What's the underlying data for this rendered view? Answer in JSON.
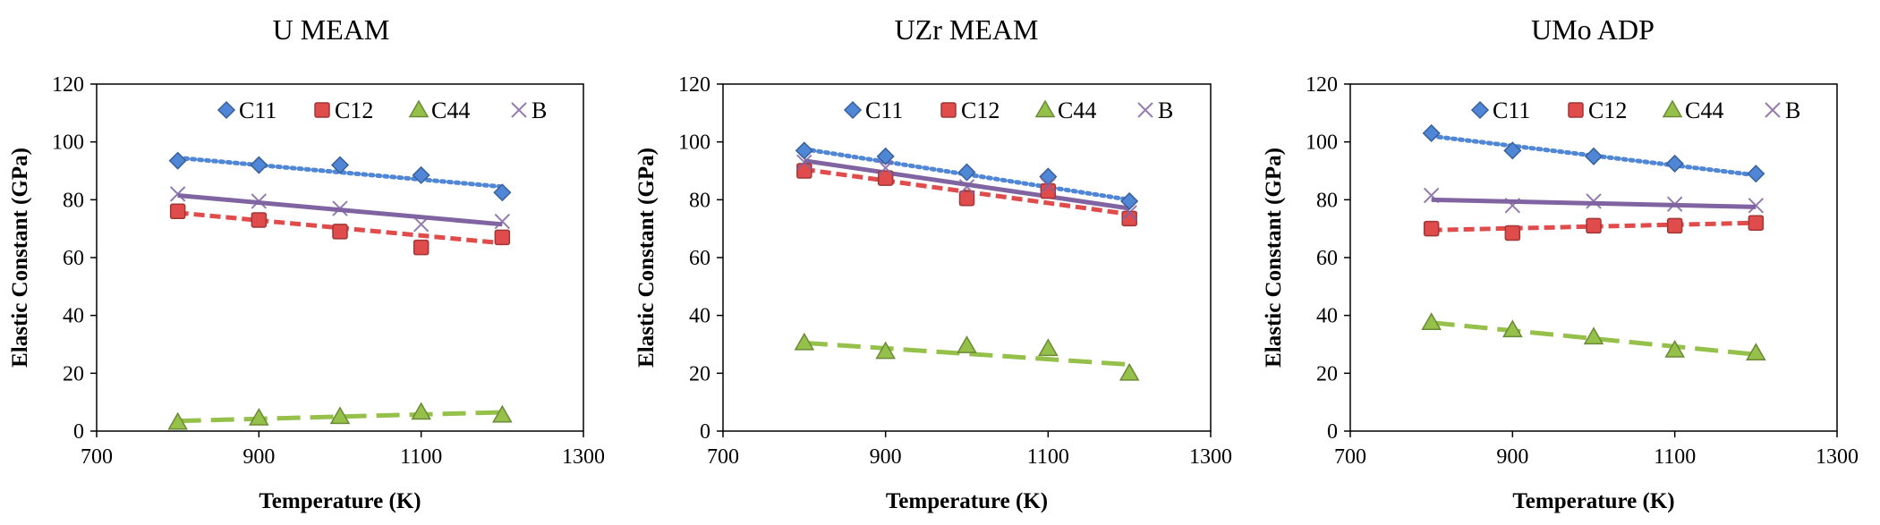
{
  "colors": {
    "C11": "#4f86d6",
    "C12": "#e04b4b",
    "C44": "#95c04a",
    "B": "#8064a2",
    "frame": "#000000"
  },
  "chart_data": [
    {
      "type": "scatter",
      "title": "U MEAM",
      "xlabel": "Temperature (K)",
      "ylabel": "Elastic Constant (GPa)",
      "xlim": [
        700,
        1300
      ],
      "ylim": [
        0,
        120
      ],
      "xticks": [
        700,
        900,
        1100,
        1300
      ],
      "yticks": [
        0,
        20,
        40,
        60,
        80,
        100,
        120
      ],
      "grid": false,
      "legend": "top",
      "x": [
        800,
        900,
        1000,
        1100,
        1200
      ],
      "series": [
        {
          "name": "C11",
          "marker": "diamond",
          "values": [
            93.5,
            92,
            92,
            88.5,
            82.5
          ],
          "trend": "dotted",
          "trendline": [
            94.5,
            84.5
          ]
        },
        {
          "name": "C12",
          "marker": "square",
          "values": [
            76,
            73,
            69,
            63.5,
            67
          ],
          "trend": "short-dash",
          "trendline": [
            75.5,
            65
          ]
        },
        {
          "name": "C44",
          "marker": "triangle",
          "values": [
            3,
            4.5,
            5,
            6.5,
            5.5
          ],
          "trend": "long-dash",
          "trendline": [
            3.5,
            6.5
          ]
        },
        {
          "name": "B",
          "marker": "x",
          "values": [
            82,
            79.5,
            77,
            71.5,
            72.5
          ],
          "trend": "solid",
          "trendline": [
            81.5,
            71.5
          ]
        }
      ]
    },
    {
      "type": "scatter",
      "title": "UZr MEAM",
      "xlabel": "Temperature (K)",
      "ylabel": "Elastic Constant (GPa)",
      "xlim": [
        700,
        1300
      ],
      "ylim": [
        0,
        120
      ],
      "xticks": [
        700,
        900,
        1100,
        1300
      ],
      "yticks": [
        0,
        20,
        40,
        60,
        80,
        100,
        120
      ],
      "grid": false,
      "legend": "top",
      "x": [
        800,
        900,
        1000,
        1100,
        1200
      ],
      "series": [
        {
          "name": "C11",
          "marker": "diamond",
          "values": [
            97,
            95,
            89.5,
            88,
            79.5
          ],
          "trend": "dotted",
          "trendline": [
            97.5,
            80
          ]
        },
        {
          "name": "C12",
          "marker": "square",
          "values": [
            90,
            87.5,
            80.5,
            83,
            73.5
          ],
          "trend": "short-dash",
          "trendline": [
            90.5,
            75
          ]
        },
        {
          "name": "C44",
          "marker": "triangle",
          "values": [
            30.5,
            27.5,
            29.5,
            28.5,
            20
          ],
          "trend": "long-dash",
          "trendline": [
            30.5,
            23
          ]
        },
        {
          "name": "B",
          "marker": "x",
          "values": [
            93,
            91,
            84.5,
            85,
            75.5
          ],
          "trend": "solid",
          "trendline": [
            93.5,
            77
          ]
        }
      ]
    },
    {
      "type": "scatter",
      "title": "UMo ADP",
      "xlabel": "Temperature (K)",
      "ylabel": "Elastic Constant (GPa)",
      "xlim": [
        700,
        1300
      ],
      "ylim": [
        0,
        120
      ],
      "xticks": [
        700,
        900,
        1100,
        1300
      ],
      "yticks": [
        0,
        20,
        40,
        60,
        80,
        100,
        120
      ],
      "grid": false,
      "legend": "top",
      "x": [
        800,
        900,
        1000,
        1100,
        1200
      ],
      "series": [
        {
          "name": "C11",
          "marker": "diamond",
          "values": [
            103,
            97,
            95,
            92.5,
            89
          ],
          "trend": "dotted",
          "trendline": [
            102,
            88.5
          ]
        },
        {
          "name": "C12",
          "marker": "square",
          "values": [
            70,
            68.5,
            71,
            71,
            72
          ],
          "trend": "short-dash",
          "trendline": [
            69.5,
            72
          ]
        },
        {
          "name": "C44",
          "marker": "triangle",
          "values": [
            37.5,
            35,
            32.5,
            28,
            27
          ],
          "trend": "long-dash",
          "trendline": [
            37.5,
            26.5
          ]
        },
        {
          "name": "B",
          "marker": "x",
          "values": [
            81.5,
            78,
            79.5,
            78.5,
            78
          ],
          "trend": "solid",
          "trendline": [
            80,
            77.5
          ]
        }
      ]
    }
  ]
}
